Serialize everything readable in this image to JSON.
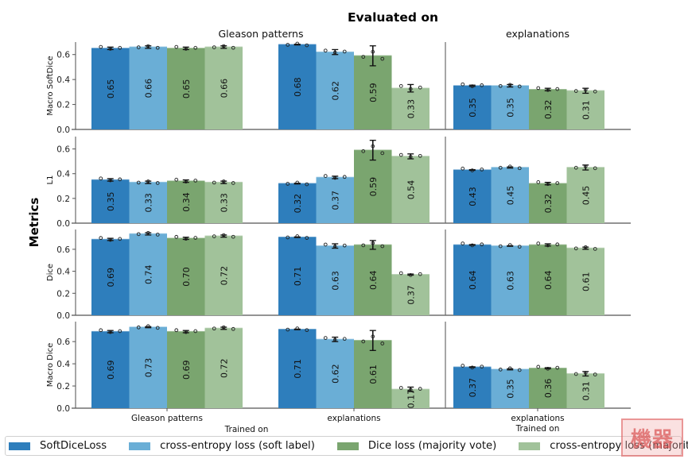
{
  "chart_data": {
    "type": "bar",
    "title": "Evaluated on",
    "ylabel": "Metrics",
    "xlabel": "Trained on",
    "columns": [
      {
        "title": "Gleason patterns",
        "categories": [
          "Gleason patterns",
          "explanations"
        ]
      },
      {
        "title": "explanations",
        "categories": [
          "explanations"
        ]
      }
    ],
    "series": [
      {
        "name": "SoftDiceLoss",
        "color": "#2e7ebc"
      },
      {
        "name": "cross-entropy loss (soft label)",
        "color": "#6aaed6"
      },
      {
        "name": "Dice loss (majority vote)",
        "color": "#7aa56f"
      },
      {
        "name": "cross-entropy loss (majority vote)",
        "color": "#a1c29a"
      }
    ],
    "rows": [
      {
        "metric": "Macro SoftDice",
        "ylim": [
          0,
          0.7
        ],
        "yticks": [
          "0.0",
          "0.2",
          "0.4",
          "0.6"
        ],
        "panels": [
          {
            "groups": [
              {
                "category": "Gleason patterns",
                "values": [
                  0.65,
                  0.66,
                  0.65,
                  0.66
                ],
                "labels": [
                  "0.65",
                  "0.66",
                  "0.65",
                  "0.66"
                ],
                "err": [
                  0.01,
                  0.01,
                  0.01,
                  0.01
                ]
              },
              {
                "category": "explanations",
                "values": [
                  0.68,
                  0.62,
                  0.59,
                  0.33
                ],
                "labels": [
                  "0.68",
                  "0.62",
                  "0.59",
                  "0.33"
                ],
                "err": [
                  0.003,
                  0.02,
                  0.08,
                  0.03
                ]
              }
            ]
          },
          {
            "groups": [
              {
                "category": "explanations",
                "values": [
                  0.35,
                  0.35,
                  0.32,
                  0.31
                ],
                "labels": [
                  "0.35",
                  "0.35",
                  "0.32",
                  "0.31"
                ],
                "err": [
                  0.005,
                  0.01,
                  0.01,
                  0.02
                ]
              }
            ]
          }
        ]
      },
      {
        "metric": "L1",
        "ylim": [
          0,
          0.7
        ],
        "yticks": [
          "0.0",
          "0.2",
          "0.4",
          "0.6"
        ],
        "panels": [
          {
            "groups": [
              {
                "category": "Gleason patterns",
                "values": [
                  0.35,
                  0.33,
                  0.34,
                  0.33
                ],
                "labels": [
                  "0.35",
                  "0.33",
                  "0.34",
                  "0.33"
                ],
                "err": [
                  0.01,
                  0.01,
                  0.01,
                  0.01
                ]
              },
              {
                "category": "explanations",
                "values": [
                  0.32,
                  0.37,
                  0.59,
                  0.54
                ],
                "labels": [
                  "0.32",
                  "0.37",
                  "0.59",
                  "0.54"
                ],
                "err": [
                  0.003,
                  0.01,
                  0.08,
                  0.02
                ]
              }
            ]
          },
          {
            "groups": [
              {
                "category": "explanations",
                "values": [
                  0.43,
                  0.45,
                  0.32,
                  0.45
                ],
                "labels": [
                  "0.43",
                  "0.45",
                  "0.32",
                  "0.45"
                ],
                "err": [
                  0.003,
                  0.005,
                  0.01,
                  0.02
                ]
              }
            ]
          }
        ]
      },
      {
        "metric": "Dice",
        "ylim": [
          0,
          0.78
        ],
        "yticks": [
          "0.0",
          "0.2",
          "0.4",
          "0.6"
        ],
        "panels": [
          {
            "groups": [
              {
                "category": "Gleason patterns",
                "values": [
                  0.69,
                  0.74,
                  0.7,
                  0.72
                ],
                "labels": [
                  "0.69",
                  "0.74",
                  "0.70",
                  "0.72"
                ],
                "err": [
                  0.01,
                  0.01,
                  0.01,
                  0.01
                ]
              },
              {
                "category": "explanations",
                "values": [
                  0.71,
                  0.63,
                  0.64,
                  0.37
                ],
                "labels": [
                  "0.71",
                  "0.63",
                  "0.64",
                  "0.37"
                ],
                "err": [
                  0.003,
                  0.02,
                  0.04,
                  0.005
                ]
              }
            ]
          },
          {
            "groups": [
              {
                "category": "explanations",
                "values": [
                  0.64,
                  0.63,
                  0.64,
                  0.61
                ],
                "labels": [
                  "0.64",
                  "0.63",
                  "0.64",
                  "0.61"
                ],
                "err": [
                  0.003,
                  0.003,
                  0.01,
                  0.01
                ]
              }
            ]
          }
        ]
      },
      {
        "metric": "Macro Dice",
        "ylim": [
          0,
          0.78
        ],
        "yticks": [
          "0.0",
          "0.2",
          "0.4",
          "0.6"
        ],
        "panels": [
          {
            "groups": [
              {
                "category": "Gleason patterns",
                "values": [
                  0.69,
                  0.73,
                  0.69,
                  0.72
                ],
                "labels": [
                  "0.69",
                  "0.73",
                  "0.69",
                  "0.72"
                ],
                "err": [
                  0.01,
                  0.005,
                  0.01,
                  0.01
                ]
              },
              {
                "category": "explanations",
                "values": [
                  0.71,
                  0.62,
                  0.61,
                  0.17
                ],
                "labels": [
                  "0.71",
                  "0.62",
                  "0.61",
                  "0.17"
                ],
                "err": [
                  0.003,
                  0.02,
                  0.09,
                  0.02
                ]
              }
            ]
          },
          {
            "groups": [
              {
                "category": "explanations",
                "values": [
                  0.37,
                  0.35,
                  0.36,
                  0.31
                ],
                "labels": [
                  "0.37",
                  "0.35",
                  "0.36",
                  "0.31"
                ],
                "err": [
                  0.003,
                  0.005,
                  0.005,
                  0.02
                ]
              }
            ]
          }
        ]
      }
    ]
  },
  "legend": {
    "items": [
      {
        "label": "SoftDiceLoss",
        "color": "#2e7ebc"
      },
      {
        "label": "cross-entropy loss (soft label)",
        "color": "#6aaed6"
      },
      {
        "label": "Dice loss (majority vote)",
        "color": "#7aa56f"
      },
      {
        "label": "cross-entropy loss (majority vote)",
        "color": "#a1c29a"
      }
    ]
  },
  "watermark": {
    "text": "機器"
  }
}
